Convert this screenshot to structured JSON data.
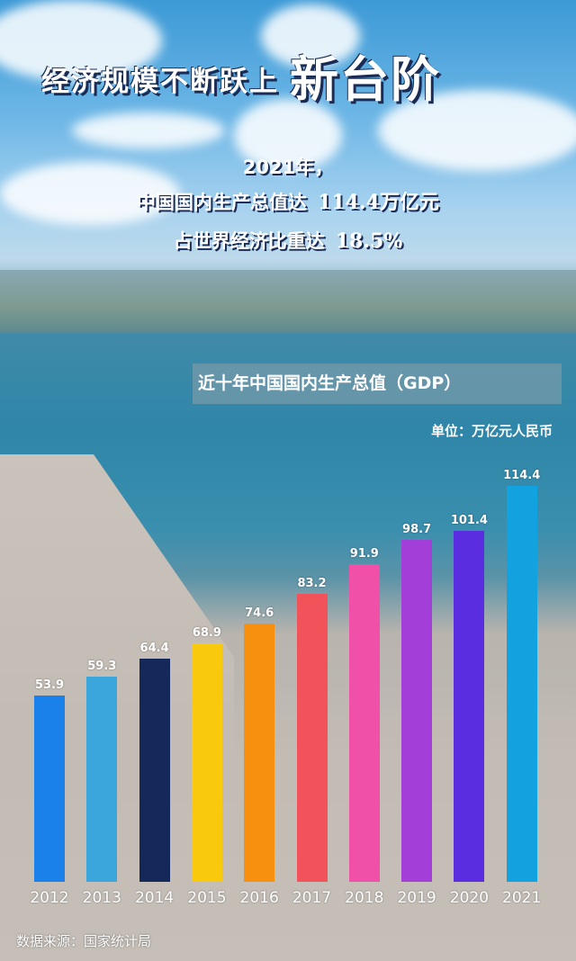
{
  "headline": {
    "main": "经济规模不断跃上",
    "emphasis": "新台阶"
  },
  "summary": {
    "line1": "2021年，",
    "line2_label": "中国国内生产总值达",
    "line2_value": "114.4万亿元",
    "line3_label": "占世界经济比重达",
    "line3_value": "18.5%"
  },
  "chart_data": {
    "type": "bar",
    "title": "近十年中国国内生产总值（GDP）",
    "unit": "单位：万亿元人民币",
    "categories": [
      "2012",
      "2013",
      "2014",
      "2015",
      "2016",
      "2017",
      "2018",
      "2019",
      "2020",
      "2021"
    ],
    "values": [
      53.9,
      59.3,
      64.4,
      68.9,
      74.6,
      83.2,
      91.9,
      98.7,
      101.4,
      114.4
    ],
    "colors": [
      "#1a80ea",
      "#3ba6dc",
      "#14285a",
      "#f9c90e",
      "#f7900f",
      "#f2525a",
      "#f050a8",
      "#a33ed8",
      "#5a2ee0",
      "#12a2e0"
    ],
    "ylim": [
      0,
      114.4
    ],
    "grid": false
  },
  "source": "数据来源：国家统计局"
}
